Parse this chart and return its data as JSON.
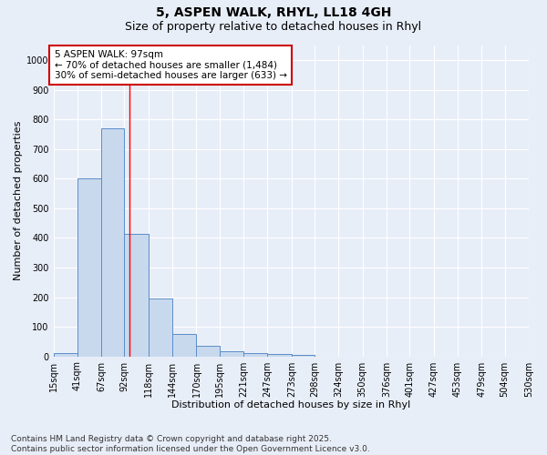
{
  "title_line1": "5, ASPEN WALK, RHYL, LL18 4GH",
  "title_line2": "Size of property relative to detached houses in Rhyl",
  "xlabel": "Distribution of detached houses by size in Rhyl",
  "ylabel": "Number of detached properties",
  "bins": [
    15,
    41,
    67,
    92,
    118,
    144,
    170,
    195,
    221,
    247,
    273,
    298,
    324,
    350,
    376,
    401,
    427,
    453,
    479,
    504,
    530
  ],
  "counts": [
    12,
    600,
    770,
    415,
    195,
    77,
    37,
    18,
    12,
    9,
    6,
    0,
    0,
    0,
    0,
    0,
    0,
    0,
    0,
    0
  ],
  "bar_color": "#c8d9ee",
  "bar_edge_color": "#5b8dc8",
  "red_line_x": 97,
  "annotation_title": "5 ASPEN WALK: 97sqm",
  "annotation_line2": "← 70% of detached houses are smaller (1,484)",
  "annotation_line3": "30% of semi-detached houses are larger (633) →",
  "ylim": [
    0,
    1050
  ],
  "yticks": [
    0,
    100,
    200,
    300,
    400,
    500,
    600,
    700,
    800,
    900,
    1000
  ],
  "footer_line1": "Contains HM Land Registry data © Crown copyright and database right 2025.",
  "footer_line2": "Contains public sector information licensed under the Open Government Licence v3.0.",
  "background_color": "#e8eef8",
  "plot_bg_color": "#e8eef8",
  "grid_color": "#ffffff",
  "annotation_box_color": "#ffffff",
  "annotation_box_edge_color": "#cc0000",
  "title_fontsize": 10,
  "subtitle_fontsize": 9,
  "axis_label_fontsize": 8,
  "tick_fontsize": 7,
  "annotation_fontsize": 7.5,
  "footer_fontsize": 6.5
}
